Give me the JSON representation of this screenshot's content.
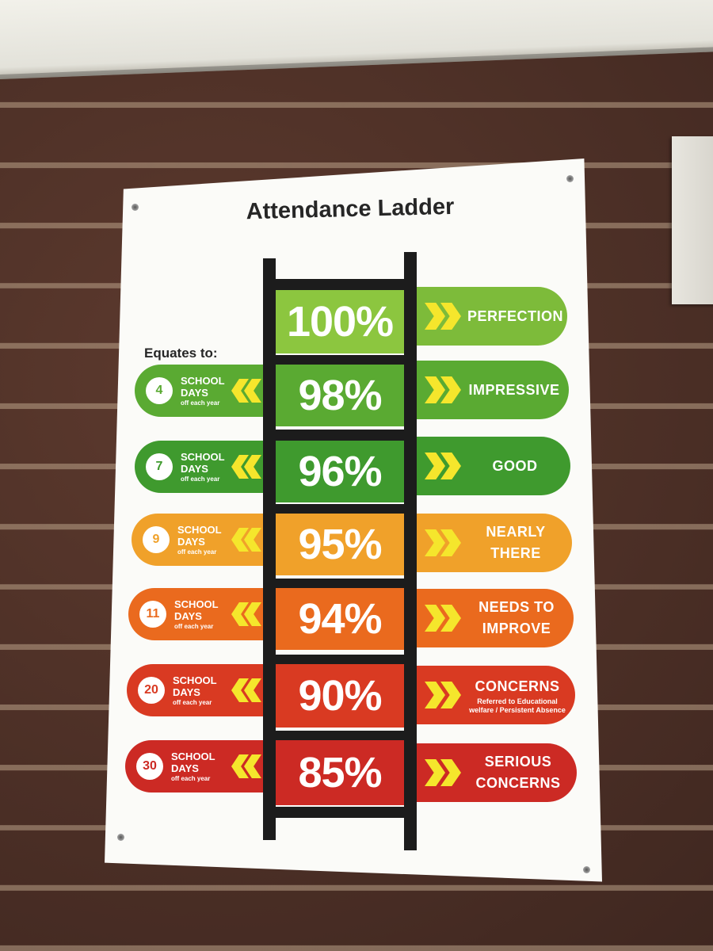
{
  "sign": {
    "title": "Attendance Ladder",
    "equates_label": "Equates to:",
    "levels": [
      {
        "percent": "100%",
        "label_line1": "PERFECTION",
        "label_line2": "",
        "sub": "",
        "color": "#8cc63f",
        "right_color": "#7dbb3a"
      },
      {
        "percent": "98%",
        "label_line1": "IMPRESSIVE",
        "label_line2": "",
        "sub": "",
        "color": "#5aaa32",
        "right_color": "#5aaa32",
        "days": "4",
        "school": "SCHOOL",
        "days_word": "DAYS",
        "per_year": "off each year"
      },
      {
        "percent": "96%",
        "label_line1": "GOOD",
        "label_line2": "",
        "sub": "",
        "color": "#3f9a2e",
        "right_color": "#3f9a2e",
        "days": "7",
        "school": "SCHOOL",
        "days_word": "DAYS",
        "per_year": "off each year"
      },
      {
        "percent": "95%",
        "label_line1": "NEARLY",
        "label_line2": "THERE",
        "sub": "",
        "color": "#f0a12a",
        "right_color": "#f0a12a",
        "days": "9",
        "school": "SCHOOL",
        "days_word": "DAYS",
        "per_year": "off each year"
      },
      {
        "percent": "94%",
        "label_line1": "NEEDS TO",
        "label_line2": "IMPROVE",
        "sub": "",
        "color": "#ea6a1e",
        "right_color": "#ea6a1e",
        "days": "11",
        "school": "SCHOOL",
        "days_word": "DAYS",
        "per_year": "off each year"
      },
      {
        "percent": "90%",
        "label_line1": "CONCERNS",
        "label_line2": "",
        "sub": "Referred to Educational welfare / Persistent Absence",
        "color": "#d93a22",
        "right_color": "#d93a22",
        "days": "20",
        "school": "SCHOOL",
        "days_word": "DAYS",
        "per_year": "off each year"
      },
      {
        "percent": "85%",
        "label_line1": "SERIOUS",
        "label_line2": "CONCERNS",
        "sub": "",
        "color": "#cc2a24",
        "right_color": "#cc2a24",
        "days": "30",
        "school": "SCHOOL",
        "days_word": "DAYS",
        "per_year": "off each year"
      }
    ]
  }
}
